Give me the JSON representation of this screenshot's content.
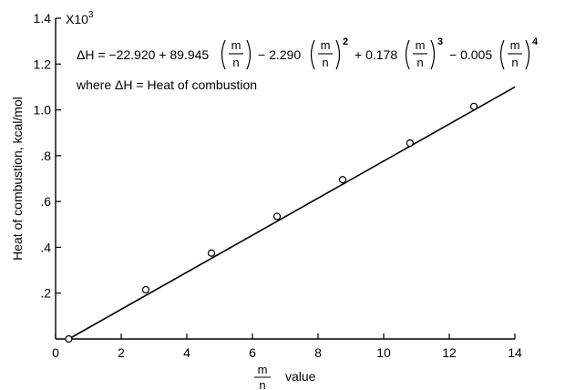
{
  "chart_data": {
    "type": "scatter",
    "ylabel": "Heat of combustion, kcal/mol",
    "y_multiplier": "X10",
    "y_multiplier_exp": "3",
    "x_label_frac_num": "m",
    "x_label_frac_den": "n",
    "x_label_suffix": "value",
    "xlim": [
      0,
      14
    ],
    "ylim": [
      0,
      1.4
    ],
    "xticks": [
      0,
      2,
      4,
      6,
      8,
      10,
      12,
      14
    ],
    "xtick_labels": [
      "0",
      "2",
      "4",
      "6",
      "8",
      "10",
      "12",
      "14"
    ],
    "yticks": [
      0.2,
      0.4,
      0.6,
      0.8,
      1.0,
      1.2,
      1.4
    ],
    "ytick_labels": [
      ".2",
      ".4",
      ".6",
      ".8",
      "1.0",
      "1.2",
      "1.4"
    ],
    "points": {
      "x": [
        0.4,
        2.75,
        4.75,
        6.75,
        8.75,
        10.8,
        12.75
      ],
      "y": [
        0.0,
        0.215,
        0.375,
        0.535,
        0.695,
        0.855,
        1.015
      ]
    },
    "fit_line": {
      "x": [
        0.4,
        14.0
      ],
      "y": [
        0.0,
        1.1
      ]
    },
    "grid": false,
    "equation": {
      "lhs": "ΔH = −22.920 + 89.945",
      "term2": "− 2.290",
      "term3": "+ 0.178",
      "term4": "− 0.005",
      "frac_num": "m",
      "frac_den": "n",
      "exp2": "2",
      "exp3": "3",
      "exp4": "4"
    },
    "where_note": "where ΔH = Heat of combustion"
  }
}
